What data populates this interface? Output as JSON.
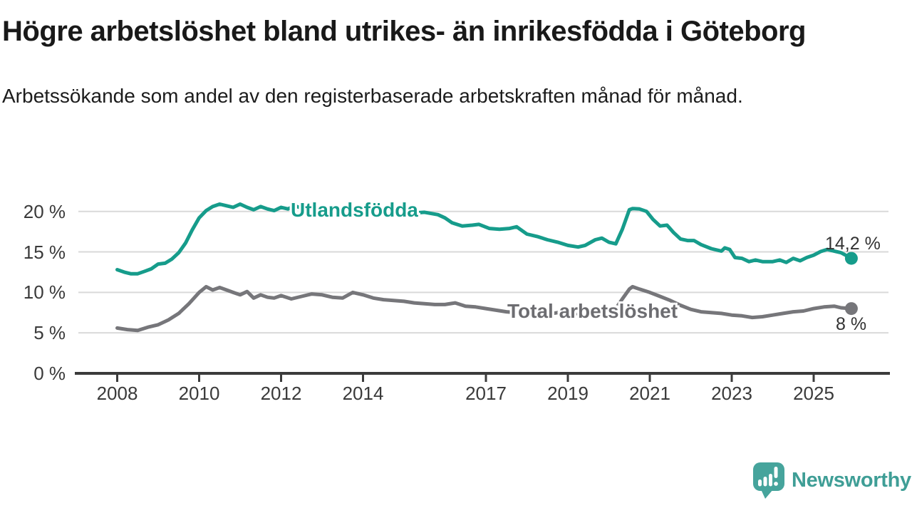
{
  "header": {
    "title": "Högre arbetslöshet bland utrikes- än inrikesfödda i Göteborg",
    "subtitle": "Arbetssökande som andel av den registerbaserade arbetskraften månad för månad."
  },
  "chart_data": {
    "type": "line",
    "title": "Högre arbetslöshet bland utrikes- än inrikesfödda i Göteborg",
    "xlabel": "",
    "ylabel": "",
    "ylim": [
      0,
      22
    ],
    "xlim": [
      2007.0,
      2026.8
    ],
    "grid": "horizontal",
    "grid_color": "#d9d9d9",
    "axis_color": "#3b3b3b",
    "y_ticks": [
      {
        "value": 0,
        "label": "0 %"
      },
      {
        "value": 5,
        "label": "5 %"
      },
      {
        "value": 10,
        "label": "10 %"
      },
      {
        "value": 15,
        "label": "15 %"
      },
      {
        "value": 20,
        "label": "20 %"
      }
    ],
    "x_ticks": [
      {
        "value": 2008,
        "label": "2008"
      },
      {
        "value": 2010,
        "label": "2010"
      },
      {
        "value": 2012,
        "label": "2012"
      },
      {
        "value": 2014,
        "label": "2014"
      },
      {
        "value": 2017,
        "label": "2017"
      },
      {
        "value": 2019,
        "label": "2019"
      },
      {
        "value": 2021,
        "label": "2021"
      },
      {
        "value": 2023,
        "label": "2023"
      },
      {
        "value": 2025,
        "label": "2025"
      }
    ],
    "series": [
      {
        "id": "utlandsfodda",
        "name": "Utlandsfödda",
        "color": "#169c8b",
        "label_color": "#169c8b",
        "end_value": 14.2,
        "end_label": "14,2 %",
        "points": [
          [
            2008.0,
            12.8
          ],
          [
            2008.17,
            12.5
          ],
          [
            2008.33,
            12.3
          ],
          [
            2008.5,
            12.3
          ],
          [
            2008.67,
            12.6
          ],
          [
            2008.83,
            12.9
          ],
          [
            2009.0,
            13.5
          ],
          [
            2009.17,
            13.6
          ],
          [
            2009.33,
            14.1
          ],
          [
            2009.5,
            14.9
          ],
          [
            2009.67,
            16.1
          ],
          [
            2009.83,
            17.7
          ],
          [
            2010.0,
            19.2
          ],
          [
            2010.17,
            20.1
          ],
          [
            2010.33,
            20.6
          ],
          [
            2010.5,
            20.9
          ],
          [
            2010.67,
            20.7
          ],
          [
            2010.83,
            20.5
          ],
          [
            2011.0,
            20.9
          ],
          [
            2011.17,
            20.5
          ],
          [
            2011.33,
            20.2
          ],
          [
            2011.5,
            20.6
          ],
          [
            2011.67,
            20.3
          ],
          [
            2011.83,
            20.1
          ],
          [
            2012.0,
            20.5
          ],
          [
            2012.17,
            20.3
          ],
          [
            2012.33,
            20.7
          ],
          [
            2012.5,
            20.4
          ],
          [
            2012.67,
            20.6
          ],
          [
            2012.83,
            20.3
          ],
          [
            2013.0,
            20.5
          ],
          [
            2013.25,
            20.2
          ],
          [
            2013.5,
            20.4
          ],
          [
            2013.75,
            20.1
          ],
          [
            2014.0,
            20.2
          ],
          [
            2014.25,
            20.0
          ],
          [
            2014.5,
            20.1
          ],
          [
            2014.75,
            19.9
          ],
          [
            2015.0,
            20.0
          ],
          [
            2015.25,
            19.8
          ],
          [
            2015.5,
            19.9
          ],
          [
            2015.83,
            19.6
          ],
          [
            2016.0,
            19.2
          ],
          [
            2016.17,
            18.6
          ],
          [
            2016.42,
            18.2
          ],
          [
            2016.67,
            18.3
          ],
          [
            2016.83,
            18.4
          ],
          [
            2017.08,
            17.9
          ],
          [
            2017.33,
            17.8
          ],
          [
            2017.58,
            17.9
          ],
          [
            2017.75,
            18.1
          ],
          [
            2018.0,
            17.2
          ],
          [
            2018.25,
            16.9
          ],
          [
            2018.5,
            16.5
          ],
          [
            2018.75,
            16.2
          ],
          [
            2019.0,
            15.8
          ],
          [
            2019.25,
            15.6
          ],
          [
            2019.42,
            15.8
          ],
          [
            2019.67,
            16.5
          ],
          [
            2019.83,
            16.7
          ],
          [
            2020.0,
            16.2
          ],
          [
            2020.17,
            16.0
          ],
          [
            2020.33,
            17.8
          ],
          [
            2020.5,
            20.2
          ],
          [
            2020.58,
            20.35
          ],
          [
            2020.75,
            20.3
          ],
          [
            2020.92,
            20.0
          ],
          [
            2021.08,
            19.0
          ],
          [
            2021.25,
            18.2
          ],
          [
            2021.42,
            18.3
          ],
          [
            2021.58,
            17.4
          ],
          [
            2021.75,
            16.6
          ],
          [
            2021.92,
            16.4
          ],
          [
            2022.08,
            16.4
          ],
          [
            2022.25,
            15.9
          ],
          [
            2022.5,
            15.4
          ],
          [
            2022.75,
            15.1
          ],
          [
            2022.83,
            15.5
          ],
          [
            2022.95,
            15.3
          ],
          [
            2023.08,
            14.3
          ],
          [
            2023.25,
            14.2
          ],
          [
            2023.42,
            13.8
          ],
          [
            2023.58,
            14.0
          ],
          [
            2023.75,
            13.8
          ],
          [
            2024.0,
            13.8
          ],
          [
            2024.17,
            14.0
          ],
          [
            2024.33,
            13.7
          ],
          [
            2024.5,
            14.2
          ],
          [
            2024.67,
            13.9
          ],
          [
            2024.83,
            14.3
          ],
          [
            2025.0,
            14.6
          ],
          [
            2025.17,
            15.05
          ],
          [
            2025.33,
            15.3
          ],
          [
            2025.5,
            15.1
          ],
          [
            2025.67,
            14.9
          ],
          [
            2025.92,
            14.2
          ]
        ]
      },
      {
        "id": "total",
        "name": "Total arbetslöshet",
        "color": "#76767a",
        "label_color": "#6d6d71",
        "end_value": 8.0,
        "end_label": "8 %",
        "points": [
          [
            2008.0,
            5.6
          ],
          [
            2008.25,
            5.4
          ],
          [
            2008.5,
            5.3
          ],
          [
            2008.75,
            5.7
          ],
          [
            2009.0,
            6.0
          ],
          [
            2009.25,
            6.6
          ],
          [
            2009.5,
            7.4
          ],
          [
            2009.75,
            8.6
          ],
          [
            2010.0,
            10.0
          ],
          [
            2010.17,
            10.7
          ],
          [
            2010.33,
            10.3
          ],
          [
            2010.5,
            10.6
          ],
          [
            2010.67,
            10.3
          ],
          [
            2010.83,
            10.0
          ],
          [
            2011.0,
            9.7
          ],
          [
            2011.17,
            10.1
          ],
          [
            2011.33,
            9.3
          ],
          [
            2011.5,
            9.7
          ],
          [
            2011.67,
            9.4
          ],
          [
            2011.83,
            9.3
          ],
          [
            2012.0,
            9.6
          ],
          [
            2012.25,
            9.2
          ],
          [
            2012.5,
            9.5
          ],
          [
            2012.75,
            9.8
          ],
          [
            2013.0,
            9.7
          ],
          [
            2013.25,
            9.4
          ],
          [
            2013.5,
            9.3
          ],
          [
            2013.75,
            10.0
          ],
          [
            2014.0,
            9.7
          ],
          [
            2014.25,
            9.3
          ],
          [
            2014.5,
            9.1
          ],
          [
            2014.75,
            9.0
          ],
          [
            2015.0,
            8.9
          ],
          [
            2015.25,
            8.7
          ],
          [
            2015.5,
            8.6
          ],
          [
            2015.75,
            8.5
          ],
          [
            2016.0,
            8.5
          ],
          [
            2016.25,
            8.7
          ],
          [
            2016.5,
            8.3
          ],
          [
            2016.75,
            8.2
          ],
          [
            2017.0,
            8.0
          ],
          [
            2017.25,
            7.8
          ],
          [
            2017.5,
            7.6
          ],
          [
            2017.75,
            7.5
          ],
          [
            2018.0,
            7.6
          ],
          [
            2018.25,
            7.4
          ],
          [
            2018.5,
            7.3
          ],
          [
            2018.75,
            7.5
          ],
          [
            2019.0,
            7.3
          ],
          [
            2019.25,
            7.4
          ],
          [
            2019.5,
            7.3
          ],
          [
            2019.75,
            7.5
          ],
          [
            2020.0,
            7.7
          ],
          [
            2020.17,
            8.0
          ],
          [
            2020.33,
            9.2
          ],
          [
            2020.5,
            10.4
          ],
          [
            2020.58,
            10.7
          ],
          [
            2020.75,
            10.4
          ],
          [
            2021.0,
            10.0
          ],
          [
            2021.25,
            9.5
          ],
          [
            2021.5,
            9.0
          ],
          [
            2021.75,
            8.4
          ],
          [
            2022.0,
            7.9
          ],
          [
            2022.25,
            7.6
          ],
          [
            2022.5,
            7.5
          ],
          [
            2022.75,
            7.4
          ],
          [
            2023.0,
            7.2
          ],
          [
            2023.25,
            7.1
          ],
          [
            2023.5,
            6.9
          ],
          [
            2023.75,
            7.0
          ],
          [
            2024.0,
            7.2
          ],
          [
            2024.25,
            7.4
          ],
          [
            2024.5,
            7.6
          ],
          [
            2024.75,
            7.7
          ],
          [
            2025.0,
            8.0
          ],
          [
            2025.25,
            8.2
          ],
          [
            2025.5,
            8.3
          ],
          [
            2025.67,
            8.1
          ],
          [
            2025.92,
            8.0
          ]
        ]
      }
    ]
  },
  "branding": {
    "logo_text": "Newsworthy",
    "logo_text_color": "#3f9e96",
    "logo_icon_color": "#46a49c"
  }
}
